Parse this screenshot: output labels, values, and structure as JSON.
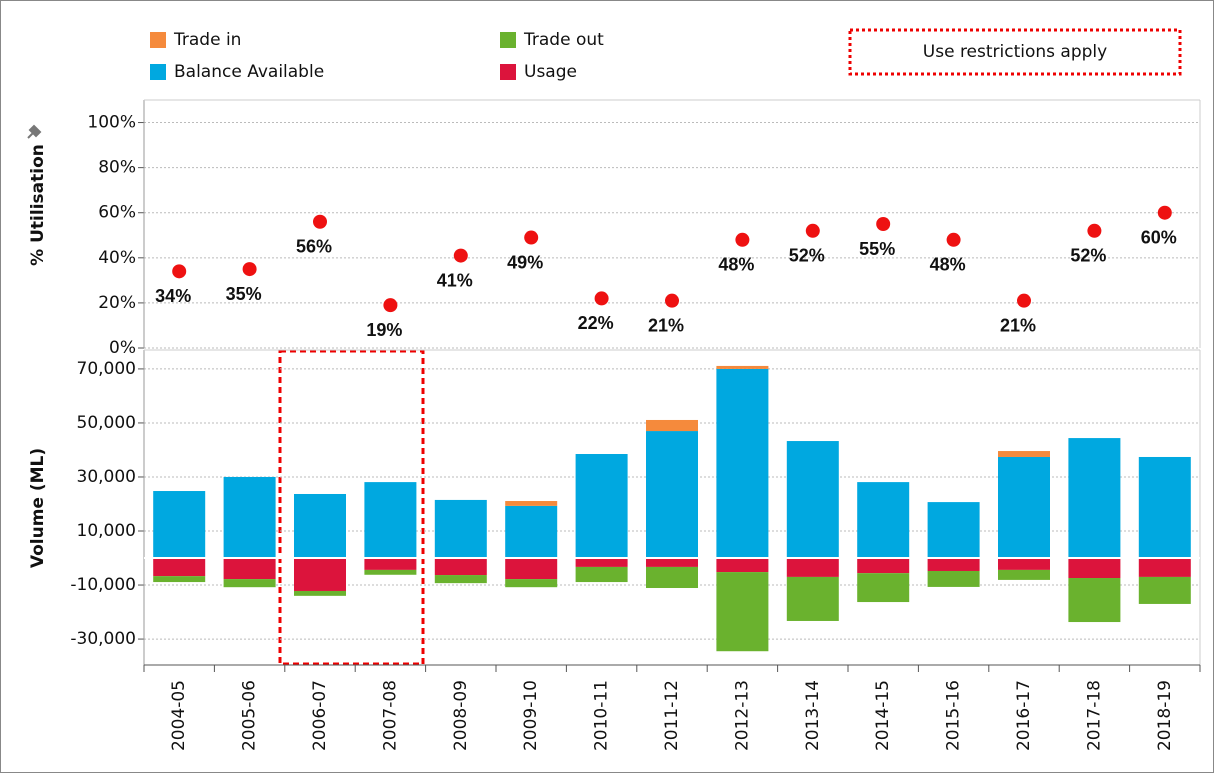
{
  "legend_note": "Use restrictions apply",
  "chart_data": [
    {
      "type": "scatter",
      "ylabel": "% Utilisation",
      "values": [
        34,
        35,
        56,
        19,
        41,
        49,
        22,
        21,
        48,
        52,
        55,
        48,
        21,
        52,
        60
      ],
      "value_labels": [
        "34%",
        "35%",
        "56%",
        "19%",
        "41%",
        "49%",
        "22%",
        "21%",
        "48%",
        "52%",
        "55%",
        "48%",
        "21%",
        "52%",
        "60%"
      ],
      "color": "#ee1111",
      "ylim": [
        0,
        110
      ],
      "yticks": [
        {
          "value": 0,
          "label": "0%"
        },
        {
          "value": 20,
          "label": "20%"
        },
        {
          "value": 40,
          "label": "40%"
        },
        {
          "value": 60,
          "label": "60%"
        },
        {
          "value": 80,
          "label": "80%"
        },
        {
          "value": 100,
          "label": "100%"
        }
      ],
      "grid": true
    },
    {
      "type": "bar",
      "stacked": true,
      "ylabel": "Volume (ML)",
      "categories": [
        "2004-05",
        "2005-06",
        "2006-07",
        "2007-08",
        "2008-09",
        "2009-10",
        "2010-11",
        "2011-12",
        "2012-13",
        "2013-14",
        "2014-15",
        "2015-16",
        "2016-17",
        "2017-18",
        "2018-19"
      ],
      "series": [
        {
          "name": "Balance Available",
          "color": "#00a8e0",
          "values": [
            24800,
            30000,
            23700,
            28100,
            21500,
            19300,
            38500,
            47000,
            70000,
            43300,
            28100,
            20700,
            37400,
            44400,
            37400
          ]
        },
        {
          "name": "Trade in",
          "color": "#f58a3c",
          "values": [
            0,
            0,
            0,
            0,
            0,
            1800,
            0,
            4100,
            1100,
            0,
            0,
            0,
            2200,
            0,
            0
          ]
        },
        {
          "name": "Usage",
          "color": "#dc143c",
          "values": [
            -6700,
            -7800,
            -12200,
            -4400,
            -6300,
            -7800,
            -3300,
            -3300,
            -5200,
            -7000,
            -5600,
            -4800,
            -4400,
            -7400,
            -7000
          ]
        },
        {
          "name": "Trade out",
          "color": "#6ab22e",
          "values": [
            -2200,
            -3000,
            -1800,
            -1800,
            -3000,
            -3000,
            -5600,
            -7800,
            -29300,
            -16300,
            -10700,
            -5900,
            -3700,
            -16300,
            -10000
          ]
        }
      ],
      "ylim": [
        -39600,
        77000
      ],
      "yticks": [
        {
          "value": -30000,
          "label": "-30,000"
        },
        {
          "value": -10000,
          "label": "-10,000"
        },
        {
          "value": 10000,
          "label": "10,000"
        },
        {
          "value": 30000,
          "label": "30,000"
        },
        {
          "value": 50000,
          "label": "50,000"
        },
        {
          "value": 70000,
          "label": "70,000"
        }
      ],
      "grid": true
    }
  ]
}
